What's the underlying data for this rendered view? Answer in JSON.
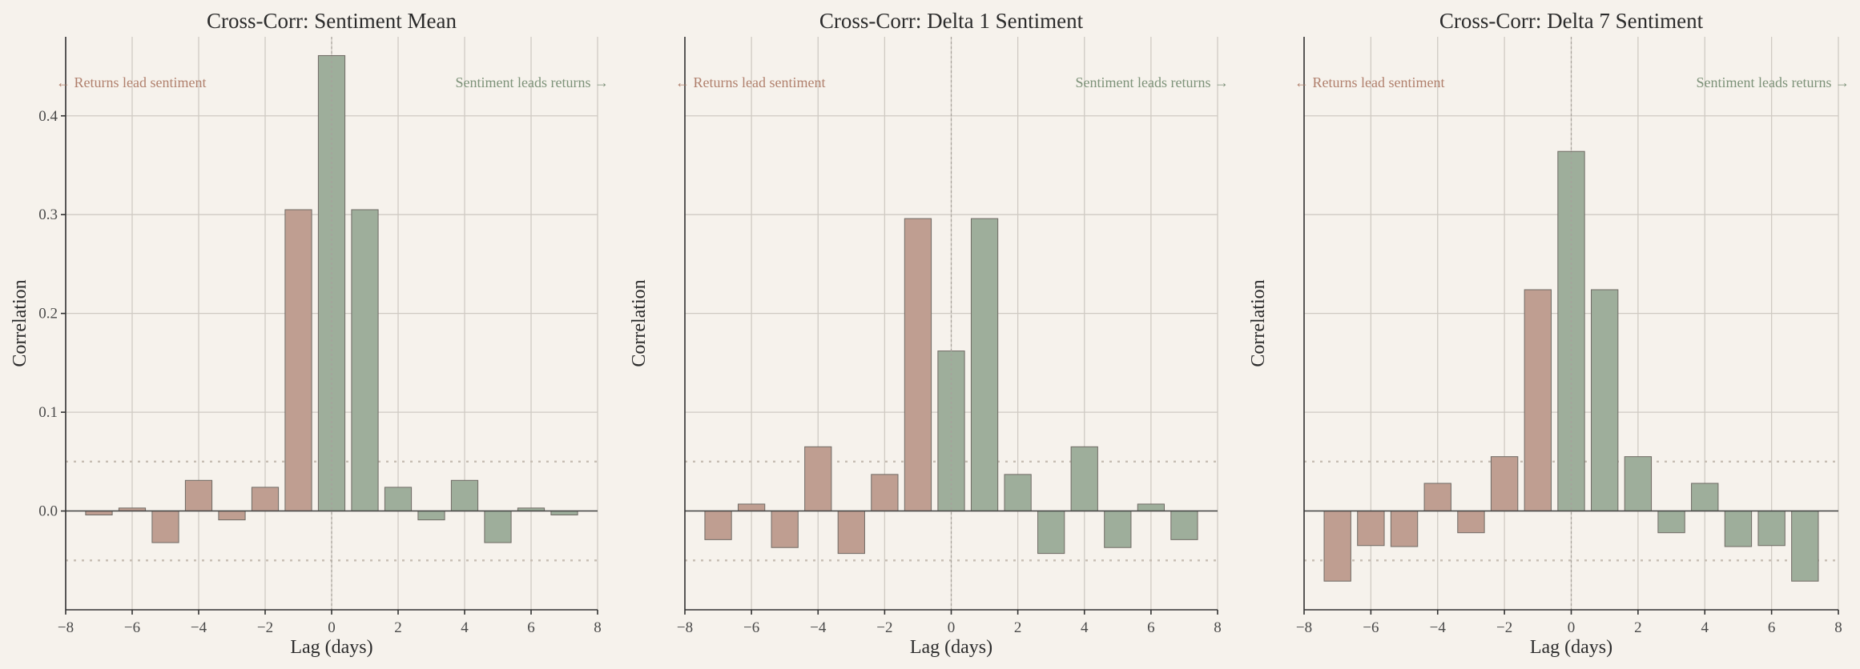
{
  "colors": {
    "neg_lag": "#bf9e91",
    "pos_lag": "#9eae9b",
    "returns_text": "#b0806d",
    "sentiment_text": "#7d9279",
    "background": "#f6f2ec"
  },
  "chart_data": [
    {
      "type": "bar",
      "title": "Cross-Corr: Sentiment Mean",
      "xlabel": "Lag (days)",
      "ylabel": "Correlation",
      "xlim": [
        -8,
        8
      ],
      "ylim": [
        -0.1,
        0.48
      ],
      "xticks": [
        -8,
        -6,
        -4,
        -2,
        0,
        2,
        4,
        6,
        8
      ],
      "xtick_labels": [
        "−8",
        "−6",
        "−4",
        "−2",
        "0",
        "2",
        "4",
        "6",
        "8"
      ],
      "yticks": [
        0.0,
        0.1,
        0.2,
        0.3,
        0.4
      ],
      "ytick_labels": [
        "0.0",
        "0.1",
        "0.2",
        "0.3",
        "0.4"
      ],
      "show_yticks": true,
      "confidence_band": 0.05,
      "grid": true,
      "lags": [
        -7,
        -6,
        -5,
        -4,
        -3,
        -2,
        -1,
        0,
        1,
        2,
        3,
        4,
        5,
        6,
        7
      ],
      "values": [
        -0.004,
        0.003,
        -0.032,
        0.031,
        -0.009,
        0.024,
        0.305,
        0.461,
        0.305,
        0.024,
        -0.009,
        0.031,
        -0.032,
        0.003,
        -0.004
      ],
      "annotations": {
        "left": "← Returns lead sentiment",
        "right": "Sentiment leads returns →"
      }
    },
    {
      "type": "bar",
      "title": "Cross-Corr: Delta 1 Sentiment",
      "xlabel": "Lag (days)",
      "ylabel": "Correlation",
      "xlim": [
        -8,
        8
      ],
      "ylim": [
        -0.1,
        0.48
      ],
      "xticks": [
        -8,
        -6,
        -4,
        -2,
        0,
        2,
        4,
        6,
        8
      ],
      "xtick_labels": [
        "−8",
        "−6",
        "−4",
        "−2",
        "0",
        "2",
        "4",
        "6",
        "8"
      ],
      "yticks": [
        0.0,
        0.1,
        0.2,
        0.3,
        0.4
      ],
      "ytick_labels": [],
      "show_yticks": false,
      "confidence_band": 0.05,
      "grid": true,
      "lags": [
        -7,
        -6,
        -5,
        -4,
        -3,
        -2,
        -1,
        0,
        1,
        2,
        3,
        4,
        5,
        6,
        7
      ],
      "values": [
        -0.029,
        0.007,
        -0.037,
        0.065,
        -0.043,
        0.037,
        0.296,
        0.162,
        0.296,
        0.037,
        -0.043,
        0.065,
        -0.037,
        0.007,
        -0.029
      ],
      "annotations": {
        "left": "← Returns lead sentiment",
        "right": "Sentiment leads returns →"
      }
    },
    {
      "type": "bar",
      "title": "Cross-Corr: Delta 7 Sentiment",
      "xlabel": "Lag (days)",
      "ylabel": "Correlation",
      "xlim": [
        -8,
        8
      ],
      "ylim": [
        -0.1,
        0.48
      ],
      "xticks": [
        -8,
        -6,
        -4,
        -2,
        0,
        2,
        4,
        6,
        8
      ],
      "xtick_labels": [
        "−8",
        "−6",
        "−4",
        "−2",
        "0",
        "2",
        "4",
        "6",
        "8"
      ],
      "yticks": [
        0.0,
        0.1,
        0.2,
        0.3,
        0.4
      ],
      "ytick_labels": [],
      "show_yticks": false,
      "confidence_band": 0.05,
      "grid": true,
      "lags": [
        -7,
        -6,
        -5,
        -4,
        -3,
        -2,
        -1,
        0,
        1,
        2,
        3,
        4,
        5,
        6,
        7
      ],
      "values": [
        -0.071,
        -0.035,
        -0.036,
        0.028,
        -0.022,
        0.055,
        0.224,
        0.364,
        0.224,
        0.055,
        -0.022,
        0.028,
        -0.036,
        -0.035,
        -0.071
      ],
      "annotations": {
        "left": "← Returns lead sentiment",
        "right": "Sentiment leads returns →"
      }
    }
  ]
}
